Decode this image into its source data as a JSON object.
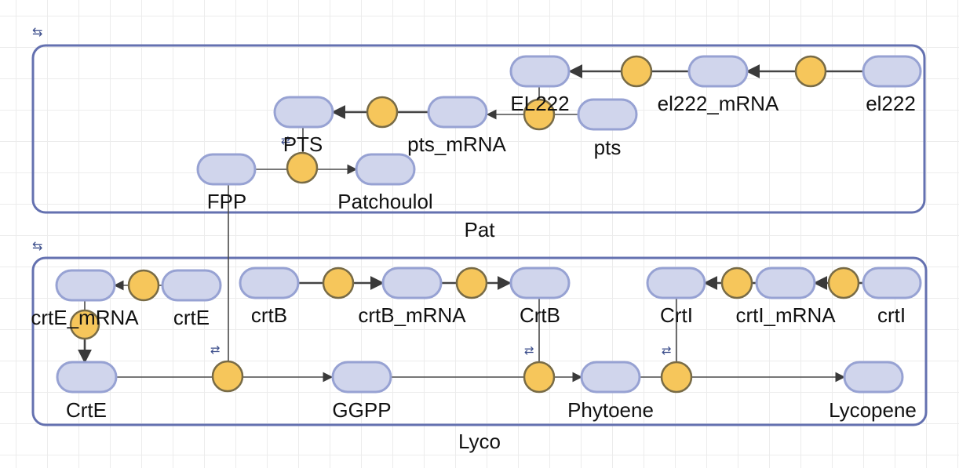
{
  "compartments": [
    {
      "id": "pat",
      "label": "Pat",
      "icon": "cycle-arrows-icon"
    },
    {
      "id": "lyco",
      "label": "Lyco",
      "icon": "cycle-arrows-icon"
    }
  ],
  "species": [
    {
      "id": "el222",
      "label": "el222"
    },
    {
      "id": "el222_mrna",
      "label": "el222_mRNA"
    },
    {
      "id": "EL222",
      "label": "EL222"
    },
    {
      "id": "pts",
      "label": "pts"
    },
    {
      "id": "pts_mrna",
      "label": "pts_mRNA"
    },
    {
      "id": "PTS",
      "label": "PTS"
    },
    {
      "id": "FPP",
      "label": "FPP"
    },
    {
      "id": "Patchoulol",
      "label": "Patchoulol"
    },
    {
      "id": "crtE_mrna",
      "label": "crtE_mRNA"
    },
    {
      "id": "crtE",
      "label": "crtE"
    },
    {
      "id": "CrtE",
      "label": "CrtE"
    },
    {
      "id": "crtB",
      "label": "crtB"
    },
    {
      "id": "crtB_mrna",
      "label": "crtB_mRNA"
    },
    {
      "id": "CrtB",
      "label": "CrtB"
    },
    {
      "id": "CrtI",
      "label": "CrtI"
    },
    {
      "id": "crtI_mrna",
      "label": "crtI_mRNA"
    },
    {
      "id": "crtI",
      "label": "crtI"
    },
    {
      "id": "GGPP",
      "label": "GGPP"
    },
    {
      "id": "Phytoene",
      "label": "Phytoene"
    },
    {
      "id": "Lycopene",
      "label": "Lycopene"
    }
  ],
  "processes": [
    {
      "id": "p_el222_tx",
      "from": "el222",
      "to": "el222_mRNA"
    },
    {
      "id": "p_el222_tl",
      "from": "el222_mRNA",
      "to": "EL222"
    },
    {
      "id": "p_pts_tx",
      "from": "pts",
      "to": "pts_mRNA",
      "modifier": "EL222"
    },
    {
      "id": "p_pts_tl",
      "from": "pts_mRNA",
      "to": "PTS"
    },
    {
      "id": "p_patchoulol",
      "from": "FPP",
      "to": "Patchoulol",
      "modifier": "PTS",
      "reversible": true
    },
    {
      "id": "p_crtE_tx",
      "from": "crtE",
      "to": "crtE_mRNA"
    },
    {
      "id": "p_crtE_tl",
      "from": "crtE_mRNA",
      "to": "CrtE"
    },
    {
      "id": "p_crtB_tx",
      "from": "crtB",
      "to": "crtB_mRNA"
    },
    {
      "id": "p_crtB_tl",
      "from": "crtB_mRNA",
      "to": "CrtB"
    },
    {
      "id": "p_crtI_tx",
      "from": "crtI",
      "to": "crtI_mRNA"
    },
    {
      "id": "p_crtI_tl",
      "from": "crtI_mRNA",
      "to": "CrtI"
    },
    {
      "id": "p_ggpp",
      "from": "FPP",
      "to": "GGPP",
      "modifier": "CrtE",
      "reversible": true
    },
    {
      "id": "p_phytoene",
      "from": "GGPP",
      "to": "Phytoene",
      "modifier": "CrtB",
      "reversible": true
    },
    {
      "id": "p_lycopene",
      "from": "Phytoene",
      "to": "Lycopene",
      "modifier": "CrtI",
      "reversible": true
    }
  ],
  "icons": {
    "compartment_icon": "⇆",
    "reversible_icon": "⇄"
  },
  "colors": {
    "compartment_border": "#6471b0",
    "species_fill": "#d0d5ec",
    "species_border": "#97a2d3",
    "process_fill": "#f6c65b",
    "process_border": "#786b46"
  }
}
